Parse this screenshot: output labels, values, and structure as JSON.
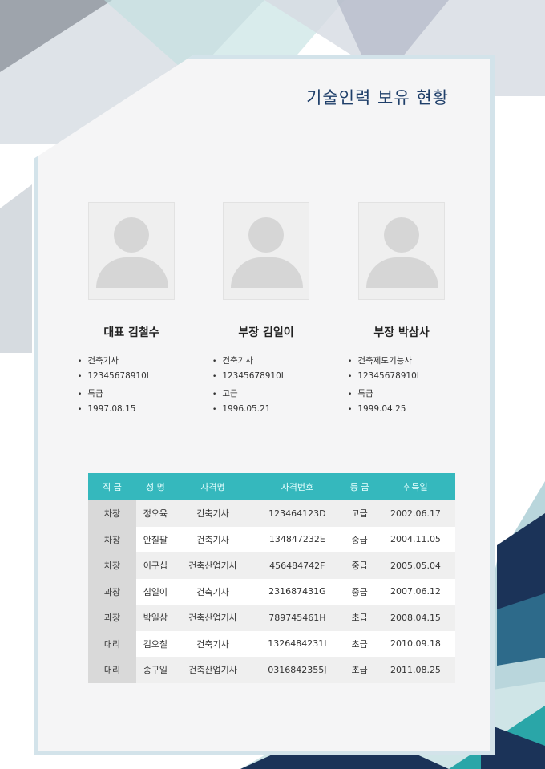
{
  "title": "기술인력 보유 현황",
  "people": [
    {
      "name": "대표 김철수",
      "items": [
        "건축기사",
        "12345678910I",
        "특급",
        "1997.08.15"
      ]
    },
    {
      "name": "부장 김일이",
      "items": [
        "건축기사",
        "12345678910I",
        "고급",
        "1996.05.21"
      ]
    },
    {
      "name": "부장 박삼사",
      "items": [
        "건축제도기능사",
        "12345678910I",
        "특급",
        "1999.04.25"
      ]
    }
  ],
  "table": {
    "headers": [
      "직 급",
      "성 명",
      "자격명",
      "자격번호",
      "등 급",
      "취득일"
    ],
    "rows": [
      [
        "차장",
        "정오육",
        "건축기사",
        "123464123D",
        "고급",
        "2002.06.17"
      ],
      [
        "차장",
        "안칠팔",
        "건축기사",
        "134847232E",
        "중급",
        "2004.11.05"
      ],
      [
        "차장",
        "이구십",
        "건축산업기사",
        "456484742F",
        "중급",
        "2005.05.04"
      ],
      [
        "과장",
        "십일이",
        "건축기사",
        "231687431G",
        "중급",
        "2007.06.12"
      ],
      [
        "과장",
        "박일삼",
        "건축산업기사",
        "789745461H",
        "초급",
        "2008.04.15"
      ],
      [
        "대리",
        "김오칠",
        "건축기사",
        "1326484231I",
        "초급",
        "2010.09.18"
      ],
      [
        "대리",
        "송구일",
        "건축산업기사",
        "0316842355J",
        "초급",
        "2011.08.25"
      ]
    ]
  },
  "colors": {
    "header": "#35b8bd",
    "title": "#1f3f6a",
    "navy": "#1b3358",
    "teal": "#2aa6a8"
  }
}
